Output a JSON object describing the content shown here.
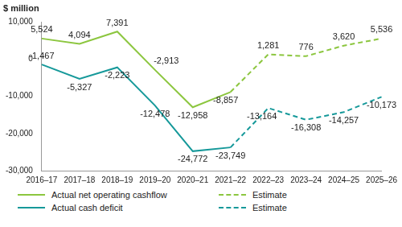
{
  "chart_data": {
    "type": "line",
    "y_label": "$ million",
    "categories": [
      "2016–17",
      "2017–18",
      "2018–19",
      "2019–20",
      "2020–21",
      "2021–22",
      "2022–23",
      "2023–24",
      "2024–25",
      "2025–26"
    ],
    "series": [
      {
        "name": "Actual net operating cashflow",
        "color": "#8cc63f",
        "line_style": "solid",
        "values": [
          5524,
          4094,
          7391,
          -2913,
          -12958,
          -8857,
          null,
          null,
          null,
          null
        ]
      },
      {
        "name": "Estimate",
        "color": "#8cc63f",
        "line_style": "dashed",
        "values": [
          null,
          null,
          null,
          null,
          null,
          -8857,
          1281,
          776,
          3620,
          5536
        ]
      },
      {
        "name": "Actual cash deficit",
        "color": "#16999a",
        "line_style": "solid",
        "values": [
          -1467,
          -5327,
          -2223,
          -12478,
          -24772,
          -23749,
          null,
          null,
          null,
          null
        ]
      },
      {
        "name": "Estimate",
        "color": "#16999a",
        "line_style": "dashed",
        "values": [
          null,
          null,
          null,
          null,
          null,
          -23749,
          -13164,
          -16308,
          -14257,
          -10173
        ]
      }
    ],
    "ylim": [
      -30000,
      10000
    ],
    "yticks": [
      {
        "value": -30000,
        "label": "-30,000"
      },
      {
        "value": -20000,
        "label": "-20,000"
      },
      {
        "value": -10000,
        "label": "-10,000"
      },
      0,
      {
        "value": 10000,
        "label": "10,000"
      }
    ],
    "grid": false,
    "legend": "bottom",
    "data_labels": true
  }
}
